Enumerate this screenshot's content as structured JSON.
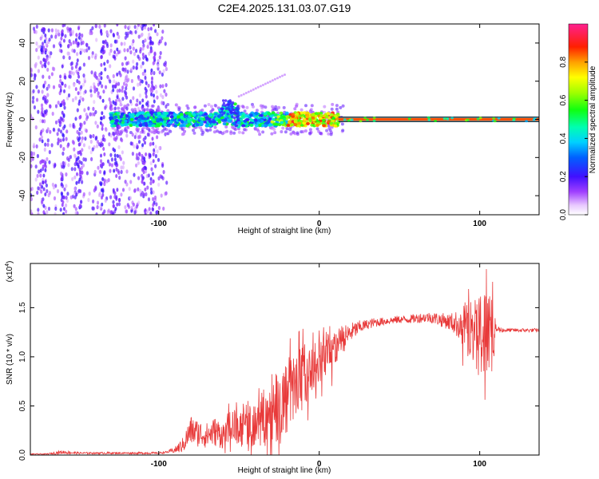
{
  "figure_title": "C2E4.2025.131.03.07.G19",
  "chart_data": [
    {
      "type": "heatmap",
      "title": "C2E4.2025.131.03.07.G19",
      "xlabel": "Height of straight line (km)",
      "ylabel": "Frequency (Hz)",
      "xlim": [
        -180,
        137
      ],
      "ylim": [
        -50,
        50
      ],
      "xticks": [
        -100,
        0,
        100
      ],
      "xtick_labels": [
        "-100",
        "0",
        "100"
      ],
      "yticks": [
        -40,
        -20,
        0,
        20,
        40
      ],
      "ytick_labels": [
        "-40",
        "-20",
        "0",
        "20",
        "40"
      ],
      "colorbar": {
        "label": "Normalized spectral amplitude",
        "range": [
          0,
          1
        ],
        "ticks": [
          0.0,
          0.2,
          0.4,
          0.6,
          0.8
        ],
        "tick_labels": [
          "0.0",
          "0.2",
          "0.4",
          "0.6",
          "0.8"
        ]
      },
      "description_features": {
        "noisy_region_x": [
          -180,
          -95
        ],
        "dense_signal_x": [
          -130,
          12
        ],
        "steady_tone_x": [
          12,
          137
        ],
        "steady_tone_freq": 0,
        "steady_tone_amplitude": 0.85,
        "bump_near_x": -55,
        "bump_freq_max": 10
      }
    },
    {
      "type": "line",
      "xlabel": "Height of straight line (km)",
      "ylabel": "SNR (10 * v/v)",
      "y_multiplier_label": "(x10",
      "y_multiplier_exp": "4",
      "y_multiplier_close": ")",
      "xlim": [
        -180,
        137
      ],
      "ylim": [
        0,
        1.95
      ],
      "xticks": [
        -100,
        0,
        100
      ],
      "xtick_labels": [
        "-100",
        "0",
        "100"
      ],
      "yticks": [
        0,
        0.5,
        1.0,
        1.5
      ],
      "ytick_labels": [
        "0.0",
        "0.5",
        "1.0",
        "1.5"
      ],
      "series": [
        {
          "name": "SNR",
          "color": "#e83a3a",
          "x": [
            -180,
            -170,
            -160,
            -150,
            -140,
            -130,
            -120,
            -110,
            -100,
            -95,
            -90,
            -85,
            -80,
            -75,
            -70,
            -65,
            -60,
            -55,
            -50,
            -45,
            -40,
            -35,
            -30,
            -25,
            -20,
            -15,
            -10,
            -5,
            0,
            5,
            10,
            15,
            20,
            25,
            30,
            35,
            40,
            45,
            50,
            55,
            60,
            65,
            70,
            75,
            80,
            85,
            90,
            95,
            100,
            105,
            108,
            110,
            115,
            120,
            125,
            130,
            137
          ],
          "y": [
            0.01,
            0.01,
            0.03,
            0.02,
            0.02,
            0.02,
            0.02,
            0.02,
            0.02,
            0.03,
            0.05,
            0.1,
            0.25,
            0.22,
            0.2,
            0.24,
            0.2,
            0.28,
            0.28,
            0.3,
            0.34,
            0.38,
            0.42,
            0.48,
            0.6,
            0.7,
            0.86,
            0.8,
            0.95,
            1.05,
            1.1,
            1.18,
            1.25,
            1.3,
            1.33,
            1.35,
            1.36,
            1.37,
            1.38,
            1.38,
            1.39,
            1.4,
            1.4,
            1.38,
            1.36,
            1.34,
            1.32,
            1.28,
            1.24,
            1.26,
            1.3,
            1.28,
            1.27,
            1.27,
            1.27,
            1.27,
            1.27
          ],
          "noise_amplitude": [
            0.005,
            0.005,
            0.02,
            0.01,
            0.01,
            0.01,
            0.01,
            0.01,
            0.01,
            0.01,
            0.03,
            0.08,
            0.15,
            0.14,
            0.13,
            0.15,
            0.14,
            0.18,
            0.2,
            0.22,
            0.26,
            0.3,
            0.35,
            0.4,
            0.4,
            0.35,
            0.3,
            0.28,
            0.25,
            0.25,
            0.2,
            0.14,
            0.1,
            0.07,
            0.05,
            0.05,
            0.04,
            0.04,
            0.04,
            0.04,
            0.05,
            0.05,
            0.06,
            0.07,
            0.08,
            0.12,
            0.25,
            0.35,
            0.4,
            0.4,
            0.35,
            0.05,
            0.02,
            0.02,
            0.02,
            0.02,
            0.02
          ]
        }
      ]
    }
  ]
}
